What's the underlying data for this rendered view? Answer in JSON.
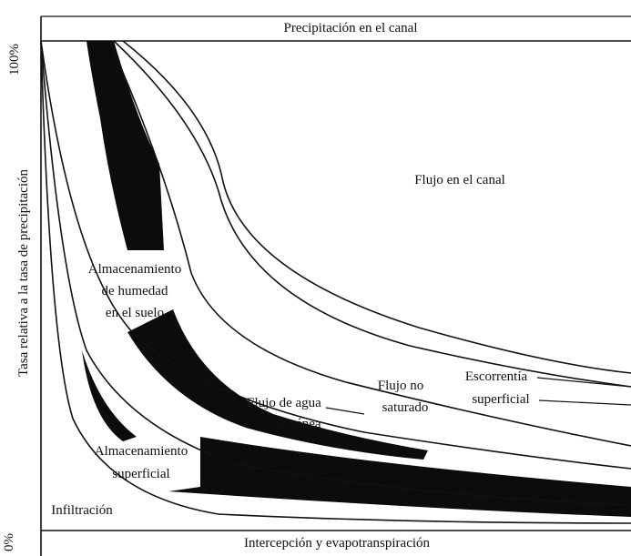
{
  "axis": {
    "top": "100%",
    "bottom": "0%",
    "label": "Tasa relativa a la tasa de precipitación"
  },
  "labels": {
    "precipitation": "Precipitación en el canal",
    "channel_flow": "Flujo en el canal",
    "soil_moisture": [
      "Almacenamiento",
      "de humedad",
      "en el suelo"
    ],
    "groundwater": [
      "Flujo de agua",
      "subterránea"
    ],
    "unsaturated": [
      "Flujo no",
      "saturado"
    ],
    "runoff": [
      "Escorrentía",
      "superficial"
    ],
    "surface_storage": [
      "Almacenamiento",
      "superficial"
    ],
    "infiltration": "Infiltración",
    "interception": "Intercepción y evapotranspiración"
  }
}
